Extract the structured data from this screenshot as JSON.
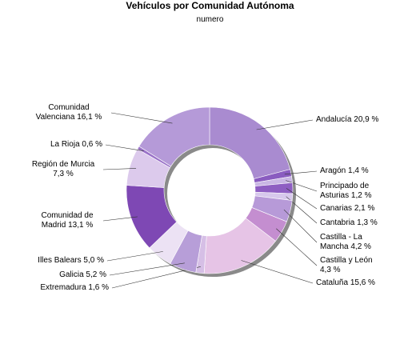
{
  "chart_data": {
    "type": "donut",
    "title": "Vehículos por Comunidad Autónoma",
    "subtitle": "numero",
    "categories": [
      "Andalucía",
      "Aragón",
      "Principado de Asturias",
      "Canarias",
      "Cantabria",
      "Castilla - La Mancha",
      "Castilla y León",
      "Cataluña",
      "Extremadura",
      "Galicia",
      "Illes Balears",
      "Comunidad de Madrid",
      "Región de Murcia",
      "La Rioja",
      "Comunidad Valenciana"
    ],
    "values": [
      20.9,
      1.4,
      1.2,
      2.1,
      1.3,
      4.2,
      4.3,
      15.6,
      1.6,
      5.2,
      5.0,
      13.1,
      7.3,
      0.6,
      16.1
    ],
    "value_labels": [
      "20,9 %",
      "1,4 %",
      "1,2 %",
      "2,1 %",
      "1,3 %",
      "4,2 %",
      "4,3 %",
      "15,6 %",
      "1,6 %",
      "5,2 %",
      "5,0 %",
      "13,1 %",
      "7,3 %",
      "0,6 %",
      "16,1 %"
    ],
    "colors": [
      "#a98bd0",
      "#8a5cc0",
      "#c9b6e4",
      "#8e5ec2",
      "#d7c8ec",
      "#b79ad8",
      "#c48ed0",
      "#e6c4e6",
      "#d6bfe6",
      "#b79ed8",
      "#ece2f4",
      "#7e48b4",
      "#dccaec",
      "#9a72c8",
      "#b59ad8"
    ]
  }
}
